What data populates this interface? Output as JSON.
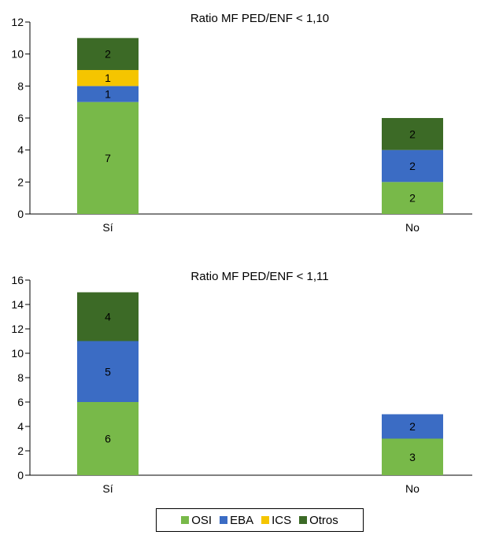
{
  "chart_data": [
    {
      "type": "bar",
      "stacked": true,
      "title": "Ratio MF PED/ENF < 1,10",
      "categories": [
        "Sí",
        "No"
      ],
      "series": [
        {
          "name": "OSI",
          "values": [
            7,
            2
          ],
          "color": "#78b949"
        },
        {
          "name": "EBA",
          "values": [
            1,
            2
          ],
          "color": "#3b6cc4"
        },
        {
          "name": "ICS",
          "values": [
            1,
            0
          ],
          "color": "#f5c500"
        },
        {
          "name": "Otros",
          "values": [
            2,
            2
          ],
          "color": "#3c6a26"
        }
      ],
      "ylim": [
        0,
        12
      ],
      "yticks": [
        "0",
        "2",
        "4",
        "6",
        "8",
        "10",
        "12"
      ],
      "grid": false
    },
    {
      "type": "bar",
      "stacked": true,
      "title": "Ratio MF PED/ENF < 1,11",
      "categories": [
        "Sí",
        "No"
      ],
      "series": [
        {
          "name": "OSI",
          "values": [
            6,
            3
          ],
          "color": "#78b949"
        },
        {
          "name": "EBA",
          "values": [
            5,
            2
          ],
          "color": "#3b6cc4"
        },
        {
          "name": "ICS",
          "values": [
            0,
            0
          ],
          "color": "#f5c500"
        },
        {
          "name": "Otros",
          "values": [
            4,
            0
          ],
          "color": "#3c6a26"
        }
      ],
      "ylim": [
        0,
        16
      ],
      "yticks": [
        "0",
        "2",
        "4",
        "6",
        "8",
        "10",
        "12",
        "14",
        "16"
      ],
      "grid": false
    }
  ],
  "legend": {
    "placement": "bottom-center",
    "items": [
      {
        "label": "OSI",
        "color": "#78b949"
      },
      {
        "label": "EBA",
        "color": "#3b6cc4"
      },
      {
        "label": "ICS",
        "color": "#f5c500"
      },
      {
        "label": "Otros",
        "color": "#3c6a26"
      }
    ]
  }
}
